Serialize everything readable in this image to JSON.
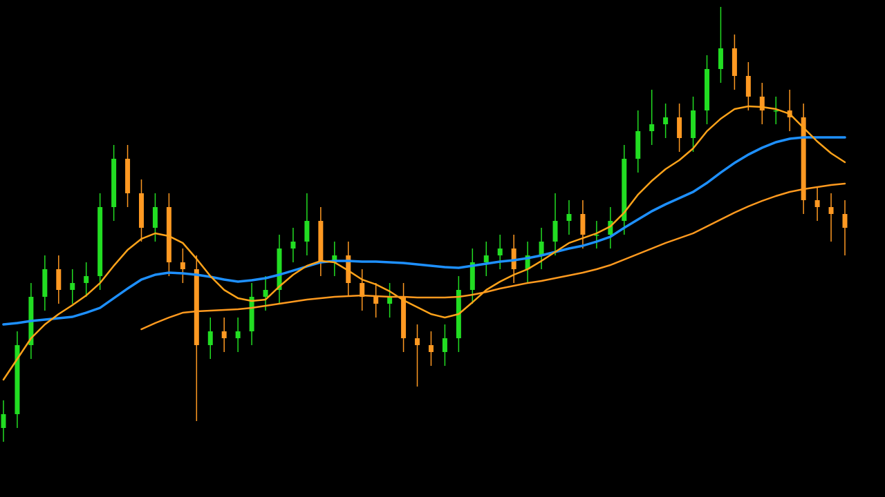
{
  "chart_data": {
    "type": "candlestick",
    "ylim": [
      0,
      720
    ],
    "up_color": "#22dd22",
    "down_color": "#ff9922",
    "open": [
      100,
      120,
      220,
      290,
      330,
      300,
      310,
      320,
      420,
      490,
      440,
      390,
      420,
      340,
      330,
      220,
      240,
      230,
      240,
      290,
      300,
      360,
      370,
      400,
      340,
      350,
      310,
      290,
      280,
      290,
      230,
      220,
      210,
      230,
      300,
      340,
      350,
      360,
      330,
      350,
      370,
      400,
      410,
      380,
      380,
      400,
      490,
      530,
      540,
      550,
      520,
      560,
      620,
      650,
      610,
      580,
      560,
      560,
      550,
      430,
      420,
      410
    ],
    "high": [
      140,
      240,
      310,
      350,
      350,
      330,
      340,
      440,
      510,
      510,
      460,
      440,
      440,
      360,
      350,
      260,
      260,
      260,
      310,
      320,
      380,
      390,
      440,
      420,
      370,
      370,
      330,
      310,
      310,
      310,
      250,
      240,
      250,
      320,
      360,
      370,
      380,
      380,
      370,
      390,
      440,
      430,
      430,
      400,
      420,
      510,
      560,
      590,
      570,
      570,
      580,
      640,
      710,
      670,
      630,
      600,
      580,
      590,
      570,
      450,
      440,
      430
    ],
    "low": [
      80,
      100,
      200,
      270,
      280,
      280,
      290,
      300,
      400,
      420,
      370,
      370,
      320,
      310,
      110,
      200,
      210,
      210,
      220,
      270,
      280,
      340,
      350,
      320,
      320,
      290,
      270,
      260,
      260,
      210,
      160,
      190,
      190,
      210,
      280,
      320,
      330,
      310,
      310,
      330,
      350,
      380,
      360,
      360,
      360,
      380,
      470,
      510,
      520,
      500,
      500,
      540,
      600,
      590,
      560,
      540,
      540,
      530,
      410,
      400,
      370,
      350
    ],
    "close": [
      120,
      220,
      290,
      330,
      300,
      310,
      320,
      420,
      490,
      440,
      390,
      420,
      340,
      330,
      220,
      240,
      230,
      240,
      290,
      300,
      360,
      370,
      400,
      340,
      350,
      310,
      290,
      280,
      290,
      230,
      220,
      210,
      230,
      300,
      340,
      350,
      360,
      330,
      350,
      370,
      400,
      410,
      380,
      380,
      400,
      490,
      530,
      540,
      550,
      520,
      560,
      620,
      650,
      610,
      580,
      560,
      560,
      550,
      430,
      420,
      410,
      390
    ],
    "lines": [
      {
        "color": "#1e90ff",
        "values": [
          250,
          252,
          255,
          257,
          259,
          261,
          267,
          274,
          288,
          302,
          315,
          322,
          325,
          324,
          322,
          319,
          315,
          312,
          314,
          317,
          322,
          328,
          334,
          340,
          342,
          342,
          341,
          341,
          340,
          339,
          337,
          335,
          333,
          332,
          335,
          338,
          341,
          343,
          346,
          350,
          355,
          360,
          364,
          370,
          377,
          390,
          402,
          414,
          424,
          433,
          442,
          455,
          470,
          484,
          496,
          506,
          514,
          519,
          521,
          521,
          521,
          521
        ]
      },
      {
        "color": "#ffa31a",
        "values": [
          170,
          200,
          230,
          250,
          265,
          278,
          292,
          310,
          335,
          358,
          374,
          382,
          378,
          368,
          345,
          320,
          300,
          288,
          284,
          286,
          305,
          322,
          335,
          342,
          340,
          328,
          315,
          308,
          298,
          285,
          275,
          265,
          260,
          265,
          282,
          300,
          312,
          322,
          330,
          342,
          355,
          368,
          375,
          382,
          392,
          412,
          438,
          458,
          475,
          488,
          505,
          530,
          548,
          562,
          566,
          565,
          562,
          555,
          535,
          515,
          498,
          485
        ]
      },
      {
        "color": "#ff9a1f",
        "values": [
          null,
          null,
          null,
          null,
          null,
          null,
          null,
          null,
          null,
          null,
          243,
          252,
          260,
          267,
          269,
          270,
          271,
          272,
          274,
          277,
          280,
          283,
          286,
          288,
          290,
          291,
          292,
          291,
          290,
          290,
          289,
          289,
          289,
          290,
          293,
          297,
          302,
          306,
          310,
          313,
          317,
          321,
          325,
          330,
          336,
          344,
          352,
          360,
          368,
          375,
          382,
          392,
          402,
          412,
          421,
          429,
          436,
          442,
          446,
          449,
          452,
          454
        ]
      }
    ]
  }
}
